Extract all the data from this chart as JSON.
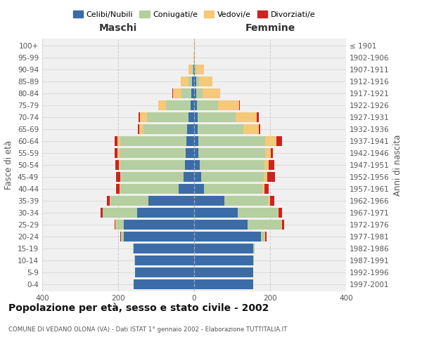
{
  "age_groups": [
    "0-4",
    "5-9",
    "10-14",
    "15-19",
    "20-24",
    "25-29",
    "30-34",
    "35-39",
    "40-44",
    "45-49",
    "50-54",
    "55-59",
    "60-64",
    "65-69",
    "70-74",
    "75-79",
    "80-84",
    "85-89",
    "90-94",
    "95-99",
    "100+"
  ],
  "birth_years": [
    "1997-2001",
    "1992-1996",
    "1987-1991",
    "1982-1986",
    "1977-1981",
    "1972-1976",
    "1967-1971",
    "1962-1966",
    "1957-1961",
    "1952-1956",
    "1947-1951",
    "1942-1946",
    "1937-1941",
    "1932-1936",
    "1927-1931",
    "1922-1926",
    "1917-1921",
    "1912-1916",
    "1907-1911",
    "1902-1906",
    "≤ 1901"
  ],
  "colors": {
    "celibi": "#3b6ca8",
    "coniugati": "#b5cfa0",
    "vedovi": "#f5c87a",
    "divorziati": "#cc2222"
  },
  "male": {
    "celibi": [
      160,
      155,
      155,
      160,
      185,
      185,
      150,
      120,
      40,
      28,
      25,
      22,
      20,
      18,
      15,
      10,
      8,
      5,
      2,
      0,
      0
    ],
    "coniugati": [
      0,
      0,
      2,
      2,
      8,
      20,
      90,
      100,
      155,
      165,
      170,
      175,
      175,
      115,
      110,
      65,
      25,
      10,
      3,
      0,
      0
    ],
    "vedovi": [
      0,
      0,
      0,
      0,
      0,
      2,
      1,
      2,
      1,
      2,
      3,
      4,
      6,
      12,
      18,
      20,
      22,
      20,
      10,
      1,
      0
    ],
    "divorziati": [
      0,
      0,
      0,
      0,
      2,
      2,
      5,
      8,
      10,
      10,
      10,
      8,
      8,
      4,
      4,
      0,
      2,
      0,
      0,
      0,
      0
    ]
  },
  "female": {
    "celibi": [
      155,
      155,
      155,
      155,
      175,
      140,
      115,
      80,
      25,
      18,
      15,
      12,
      12,
      10,
      10,
      8,
      5,
      5,
      2,
      0,
      0
    ],
    "coniugati": [
      0,
      0,
      2,
      5,
      10,
      90,
      105,
      115,
      155,
      165,
      170,
      175,
      175,
      120,
      100,
      55,
      18,
      8,
      3,
      0,
      0
    ],
    "vedovi": [
      0,
      0,
      0,
      0,
      2,
      2,
      3,
      5,
      5,
      10,
      12,
      15,
      30,
      40,
      55,
      55,
      45,
      35,
      20,
      2,
      1
    ],
    "divorziati": [
      0,
      0,
      0,
      0,
      3,
      5,
      8,
      12,
      12,
      20,
      15,
      5,
      15,
      5,
      5,
      2,
      0,
      0,
      0,
      0,
      0
    ]
  },
  "title": "Popolazione per età, sesso e stato civile - 2002",
  "subtitle": "COMUNE DI VEDANO OLONA (VA) - Dati ISTAT 1° gennaio 2002 - Elaborazione TUTTITALIA.IT",
  "xlabel_left": "Maschi",
  "xlabel_right": "Femmine",
  "ylabel_left": "Fasce di età",
  "ylabel_right": "Anni di nascita",
  "xlim": 400,
  "bg_color": "#f0f0f0",
  "grid_color": "#cccccc"
}
